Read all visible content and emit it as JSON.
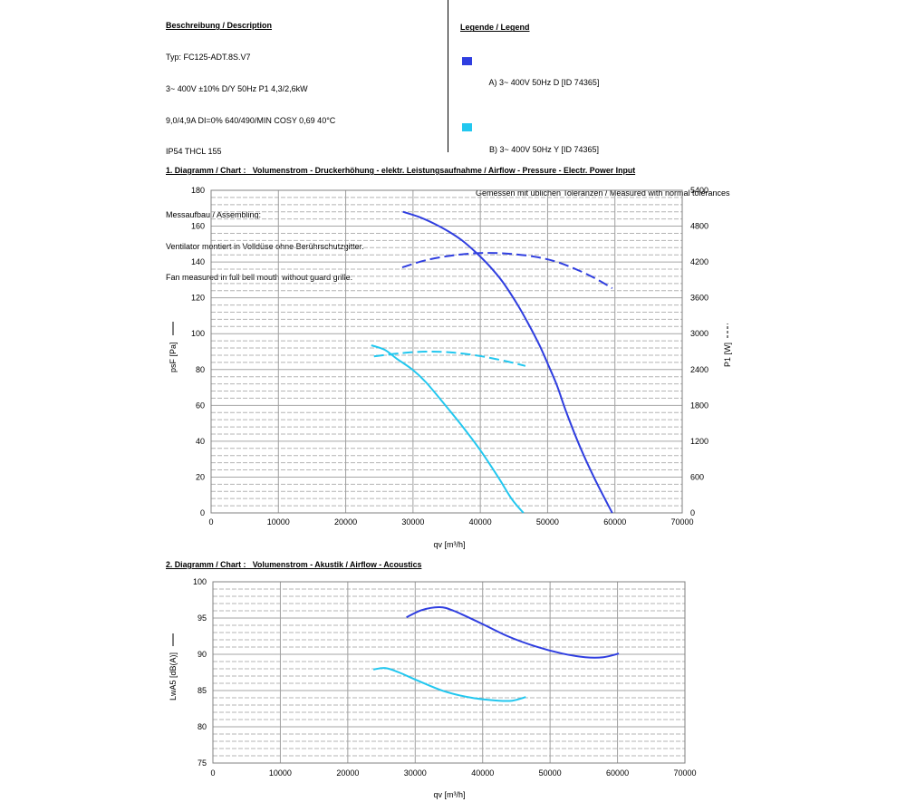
{
  "description": {
    "heading": "Beschreibung / Description",
    "lines": [
      "Typ: FC125-ADT.8S.V7",
      "3~ 400V ±10% D/Y 50Hz P1 4,3/2,6kW",
      "9,0/4,9A DI=0% 640/490/MIN COSY 0,69 40°C",
      "IP54 THCL 155"
    ],
    "assembly_heading": "Messaufbau / Assembling:",
    "assembly_lines": [
      "Ventilator montiert in Volldüse ohne Berührschutzgitter.",
      "Fan measured in full bell mouth without guard grille."
    ]
  },
  "legend": {
    "heading": "Legende / Legend",
    "items": [
      {
        "label": "A) 3~ 400V 50Hz D [ID 74365]",
        "color": "#2f3ee0"
      },
      {
        "label": "B) 3~ 400V 50Hz Y [ID 74365]",
        "color": "#22c7ef"
      }
    ],
    "note": "Gemessen mit üblichen Toleranzen / Measured with normal tolerances"
  },
  "chart_data": [
    {
      "type": "line",
      "title": "1. Diagramm / Chart :   Volumenstrom - Druckerhöhung - elektr. Leistungsaufnahme / Airflow - Pressure - Electr. Power Input",
      "xlabel": "qv [m³/h]",
      "ylabel": "psF [Pa]",
      "y2label": "P1 [W]",
      "xlim": [
        0,
        70000
      ],
      "ylim": [
        0,
        180
      ],
      "y2lim": [
        0,
        5400
      ],
      "xticks": [
        0,
        10000,
        20000,
        30000,
        40000,
        50000,
        60000,
        70000
      ],
      "yticks": [
        0,
        20,
        40,
        60,
        80,
        100,
        120,
        140,
        160,
        180
      ],
      "y2ticks": [
        0,
        600,
        1200,
        1800,
        2400,
        3000,
        3600,
        4200,
        4800,
        5400
      ],
      "grid": true,
      "series": [
        {
          "legend_item": 0,
          "axis": "left",
          "line_style": "solid",
          "color": "#2f3ee0",
          "points": [
            [
              28500,
              168
            ],
            [
              31000,
              165
            ],
            [
              33200,
              161.3
            ],
            [
              35300,
              157
            ],
            [
              37300,
              152
            ],
            [
              39300,
              145.5
            ],
            [
              41300,
              138
            ],
            [
              43300,
              129
            ],
            [
              45400,
              117
            ],
            [
              47000,
              106.5
            ],
            [
              48800,
              93.5
            ],
            [
              50100,
              82.5
            ],
            [
              51400,
              71
            ],
            [
              52800,
              56
            ],
            [
              54800,
              37
            ],
            [
              57000,
              19
            ],
            [
              59600,
              0
            ]
          ]
        },
        {
          "legend_item": 0,
          "axis": "right",
          "line_style": "dashed",
          "color": "#2f3ee0",
          "points": [
            [
              28400,
              4110
            ],
            [
              31900,
              4230
            ],
            [
              35900,
              4310
            ],
            [
              40000,
              4350
            ],
            [
              44000,
              4340
            ],
            [
              48000,
              4290
            ],
            [
              51400,
              4200
            ],
            [
              54800,
              4050
            ],
            [
              57500,
              3900
            ],
            [
              59600,
              3760
            ]
          ]
        },
        {
          "legend_item": 1,
          "axis": "left",
          "line_style": "solid",
          "color": "#22c7ef",
          "points": [
            [
              23800,
              93.5
            ],
            [
              25800,
              91
            ],
            [
              27600,
              86
            ],
            [
              29900,
              80
            ],
            [
              31900,
              73
            ],
            [
              34600,
              61
            ],
            [
              37300,
              48.5
            ],
            [
              40000,
              35
            ],
            [
              42700,
              19.7
            ],
            [
              44700,
              7.6
            ],
            [
              46400,
              0
            ]
          ]
        },
        {
          "legend_item": 1,
          "axis": "right",
          "line_style": "dashed",
          "color": "#22c7ef",
          "points": [
            [
              24200,
              2620
            ],
            [
              27900,
              2670
            ],
            [
              31900,
              2700
            ],
            [
              35900,
              2685
            ],
            [
              40000,
              2625
            ],
            [
              44000,
              2535
            ],
            [
              46700,
              2460
            ]
          ]
        }
      ]
    },
    {
      "type": "line",
      "title": "2. Diagramm / Chart :   Volumenstrom - Akustik / Airflow - Acoustics",
      "xlabel": "qv [m³/h]",
      "ylabel": "LwA5 [dB(A)]",
      "xlim": [
        0,
        70000
      ],
      "ylim": [
        75,
        100
      ],
      "xticks": [
        0,
        10000,
        20000,
        30000,
        40000,
        50000,
        60000,
        70000
      ],
      "yticks": [
        75,
        80,
        85,
        90,
        95,
        100
      ],
      "grid": true,
      "series": [
        {
          "legend_item": 0,
          "axis": "left",
          "line_style": "solid",
          "color": "#2f3ee0",
          "points": [
            [
              28700,
              95.1
            ],
            [
              31000,
              96.1
            ],
            [
              33600,
              96.5
            ],
            [
              35700,
              96.0
            ],
            [
              39700,
              94.3
            ],
            [
              43700,
              92.5
            ],
            [
              47800,
              91.1
            ],
            [
              51800,
              90.1
            ],
            [
              55200,
              89.6
            ],
            [
              57900,
              89.6
            ],
            [
              60200,
              90.1
            ]
          ]
        },
        {
          "legend_item": 1,
          "axis": "left",
          "line_style": "solid",
          "color": "#22c7ef",
          "points": [
            [
              23800,
              87.9
            ],
            [
              25600,
              88.1
            ],
            [
              27600,
              87.5
            ],
            [
              30300,
              86.4
            ],
            [
              34300,
              84.9
            ],
            [
              38400,
              84.0
            ],
            [
              42400,
              83.6
            ],
            [
              44400,
              83.6
            ],
            [
              46400,
              84.1
            ]
          ]
        }
      ]
    }
  ]
}
